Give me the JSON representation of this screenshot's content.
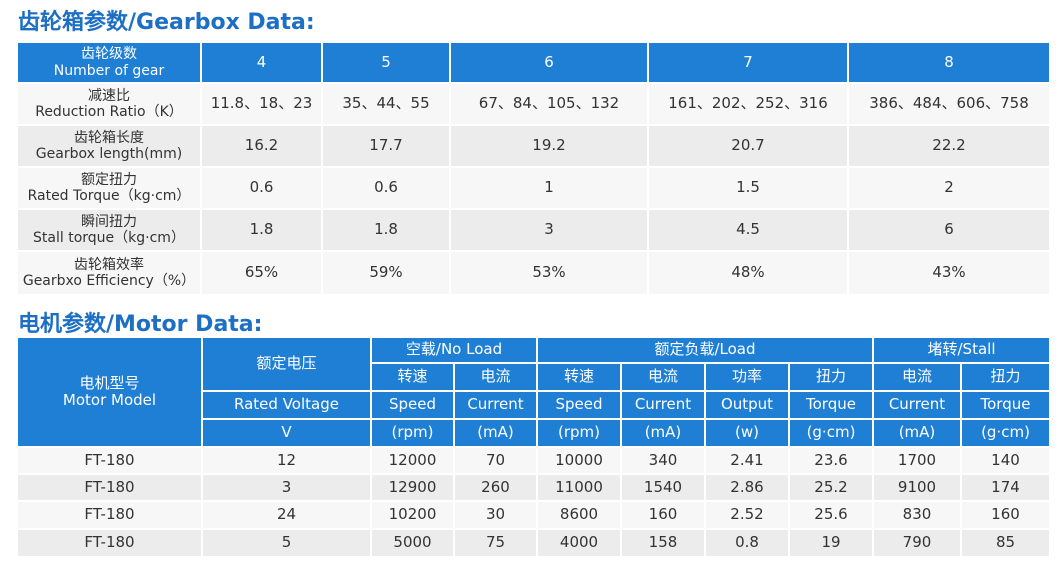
{
  "gearbox": {
    "title": "齿轮箱参数/Gearbox Data:",
    "header_label": [
      "齿轮级数",
      "Number of gear"
    ],
    "gears": [
      "4",
      "5",
      "6",
      "7",
      "8"
    ],
    "rows": [
      {
        "label": [
          "减速比",
          "Reduction Ratio（K）"
        ],
        "values": [
          "11.8、18、23",
          "35、44、55",
          "67、84、105、132",
          "161、202、252、316",
          "386、484、606、758"
        ]
      },
      {
        "label": [
          "齿轮箱长度",
          "Gearbox length(mm)"
        ],
        "values": [
          "16.2",
          "17.7",
          "19.2",
          "20.7",
          "22.2"
        ]
      },
      {
        "label": [
          "额定扭力",
          "Rated Torque（kg·cm）"
        ],
        "values": [
          "0.6",
          "0.6",
          "1",
          "1.5",
          "2"
        ]
      },
      {
        "label": [
          "瞬间扭力",
          "Stall torque（kg·cm）"
        ],
        "values": [
          "1.8",
          "1.8",
          "3",
          "4.5",
          "6"
        ]
      },
      {
        "label": [
          "齿轮箱效率",
          "Gearbxo Efficiency（%）"
        ],
        "values": [
          "65%",
          "59%",
          "53%",
          "48%",
          "43%"
        ]
      }
    ]
  },
  "motor": {
    "title": "电机参数/Motor Data:",
    "model_label": [
      "电机型号",
      "Motor Model"
    ],
    "voltage_label": [
      "额定电压",
      "Rated Voltage",
      "V"
    ],
    "groups": [
      {
        "name": "空载/No Load",
        "columns": [
          [
            "转速",
            "Speed",
            "(rpm)"
          ],
          [
            "电流",
            "Current",
            "(mA)"
          ]
        ]
      },
      {
        "name": "额定负载/Load",
        "columns": [
          [
            "转速",
            "Speed",
            "(rpm)"
          ],
          [
            "电流",
            "Current",
            "(mA)"
          ],
          [
            "功率",
            "Output",
            "(w)"
          ],
          [
            "扭力",
            "Torque",
            "(g·cm)"
          ]
        ]
      },
      {
        "name": "堵转/Stall",
        "columns": [
          [
            "电流",
            "Current",
            "(mA)"
          ],
          [
            "扭力",
            "Torque",
            "(g·cm)"
          ]
        ]
      }
    ],
    "rows": [
      [
        "FT-180",
        "12",
        "12000",
        "70",
        "10000",
        "340",
        "2.41",
        "23.6",
        "1700",
        "140"
      ],
      [
        "FT-180",
        "3",
        "12900",
        "260",
        "11000",
        "1540",
        "2.86",
        "25.2",
        "9100",
        "174"
      ],
      [
        "FT-180",
        "24",
        "10200",
        "30",
        "8600",
        "160",
        "2.52",
        "25.6",
        "830",
        "160"
      ],
      [
        "FT-180",
        "5",
        "5000",
        "75",
        "4000",
        "158",
        "0.8",
        "19",
        "790",
        "85"
      ]
    ]
  }
}
